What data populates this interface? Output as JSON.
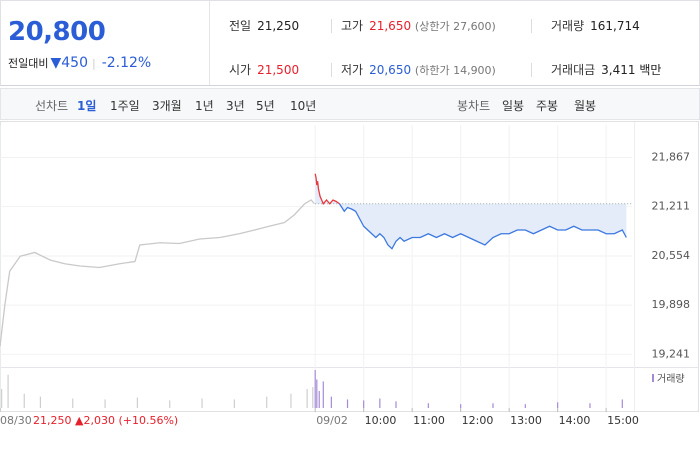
{
  "header": {
    "price": "20,800",
    "change_label": "전일대비",
    "change": "▼450",
    "rate": "-2.12%",
    "items": [
      {
        "label": "전일",
        "value": "21,250"
      },
      {
        "label": "고가",
        "value": "21,650",
        "note": "(상한가 27,600)"
      },
      {
        "label": "거래량",
        "value": "161,714"
      },
      {
        "label": "시가",
        "value": "21,500"
      },
      {
        "label": "저가",
        "value": "20,650",
        "note": "(하한가 14,900)"
      },
      {
        "label": "거래대금",
        "value": "3,411 백만"
      }
    ]
  },
  "tabs": {
    "line_title": "선차트",
    "line_tabs": [
      "1일",
      "1주일",
      "3개월",
      "1년",
      "3년",
      "5년",
      "10년"
    ],
    "candle_title": "봉차트",
    "candle_tabs": [
      "일봉",
      "주봉",
      "월봉"
    ]
  },
  "chart_data": {
    "type": "line",
    "xlim": [
      -390,
      392
    ],
    "ylim": [
      19100,
      22300
    ],
    "yticks": [
      {
        "value": 21867,
        "label": "21,867"
      },
      {
        "value": 21211,
        "label": "21,211"
      },
      {
        "value": 20554,
        "label": "20,554"
      },
      {
        "value": 19898,
        "label": "19,898"
      },
      {
        "value": 19241,
        "label": "19,241"
      }
    ],
    "xticks": [
      {
        "value": -390,
        "label": "08/30"
      },
      {
        "value": 0,
        "label": "09/02"
      },
      {
        "value": 60,
        "label": "10:00"
      },
      {
        "value": 120,
        "label": "11:00"
      },
      {
        "value": 180,
        "label": "12:00"
      },
      {
        "value": 240,
        "label": "13:00"
      },
      {
        "value": 300,
        "label": "14:00"
      },
      {
        "value": 360,
        "label": "15:00"
      }
    ],
    "reference": {
      "value": 21250,
      "label": "21,250"
    },
    "reference_change": "▲2,030",
    "reference_rate": "(+10.56%)",
    "series": [
      {
        "color": "#c9c9c9",
        "x": [
          -390,
          -384,
          -378,
          -365,
          -347,
          -328,
          -310,
          -291,
          -267,
          -242,
          -223,
          -217,
          -192,
          -168,
          -143,
          -118,
          -94,
          -75,
          -57,
          -38,
          -26,
          -13,
          -5,
          -1
        ],
        "values": [
          19350,
          19900,
          20350,
          20550,
          20600,
          20500,
          20450,
          20420,
          20400,
          20450,
          20480,
          20700,
          20730,
          20720,
          20780,
          20800,
          20850,
          20900,
          20950,
          21000,
          21100,
          21250,
          21300,
          21250
        ]
      },
      {
        "color": "#3b78e0",
        "up_color": "#e8383d",
        "fill": "#e4ecfa",
        "x": [
          0,
          1,
          2,
          3,
          4,
          5,
          6,
          8,
          10,
          14,
          18,
          22,
          26,
          30,
          33,
          36,
          40,
          45,
          50,
          55,
          60,
          65,
          70,
          75,
          80,
          85,
          90,
          95,
          100,
          105,
          110,
          120,
          130,
          140,
          150,
          160,
          170,
          180,
          190,
          200,
          210,
          220,
          230,
          240,
          250,
          260,
          270,
          280,
          290,
          300,
          310,
          320,
          330,
          340,
          350,
          360,
          370,
          380,
          385
        ],
        "values": [
          21650,
          21600,
          21500,
          21550,
          21450,
          21400,
          21350,
          21300,
          21250,
          21300,
          21250,
          21300,
          21280,
          21250,
          21200,
          21150,
          21200,
          21180,
          21150,
          21050,
          20950,
          20900,
          20850,
          20800,
          20850,
          20800,
          20700,
          20650,
          20750,
          20800,
          20750,
          20800,
          20800,
          20850,
          20800,
          20850,
          20800,
          20850,
          20800,
          20750,
          20700,
          20800,
          20850,
          20850,
          20900,
          20900,
          20850,
          20900,
          20950,
          20900,
          20900,
          20950,
          20900,
          20900,
          20900,
          20850,
          20850,
          20900,
          20800
        ]
      }
    ],
    "volume": {
      "label": "거래량",
      "color": "#a58bd6",
      "prev_color": "#cfcfcf",
      "x": [
        -388,
        -380,
        -360,
        -340,
        -300,
        -260,
        -220,
        -180,
        -140,
        -100,
        -60,
        -30,
        -10,
        -3,
        0,
        2,
        5,
        10,
        20,
        40,
        60,
        80,
        100,
        140,
        180,
        220,
        260,
        300,
        340,
        380
      ],
      "values": [
        20,
        35,
        15,
        12,
        10,
        9,
        11,
        8,
        10,
        9,
        12,
        15,
        20,
        22,
        40,
        30,
        18,
        28,
        12,
        9,
        8,
        10,
        7,
        5,
        4,
        5,
        4,
        6,
        5,
        9
      ]
    }
  }
}
